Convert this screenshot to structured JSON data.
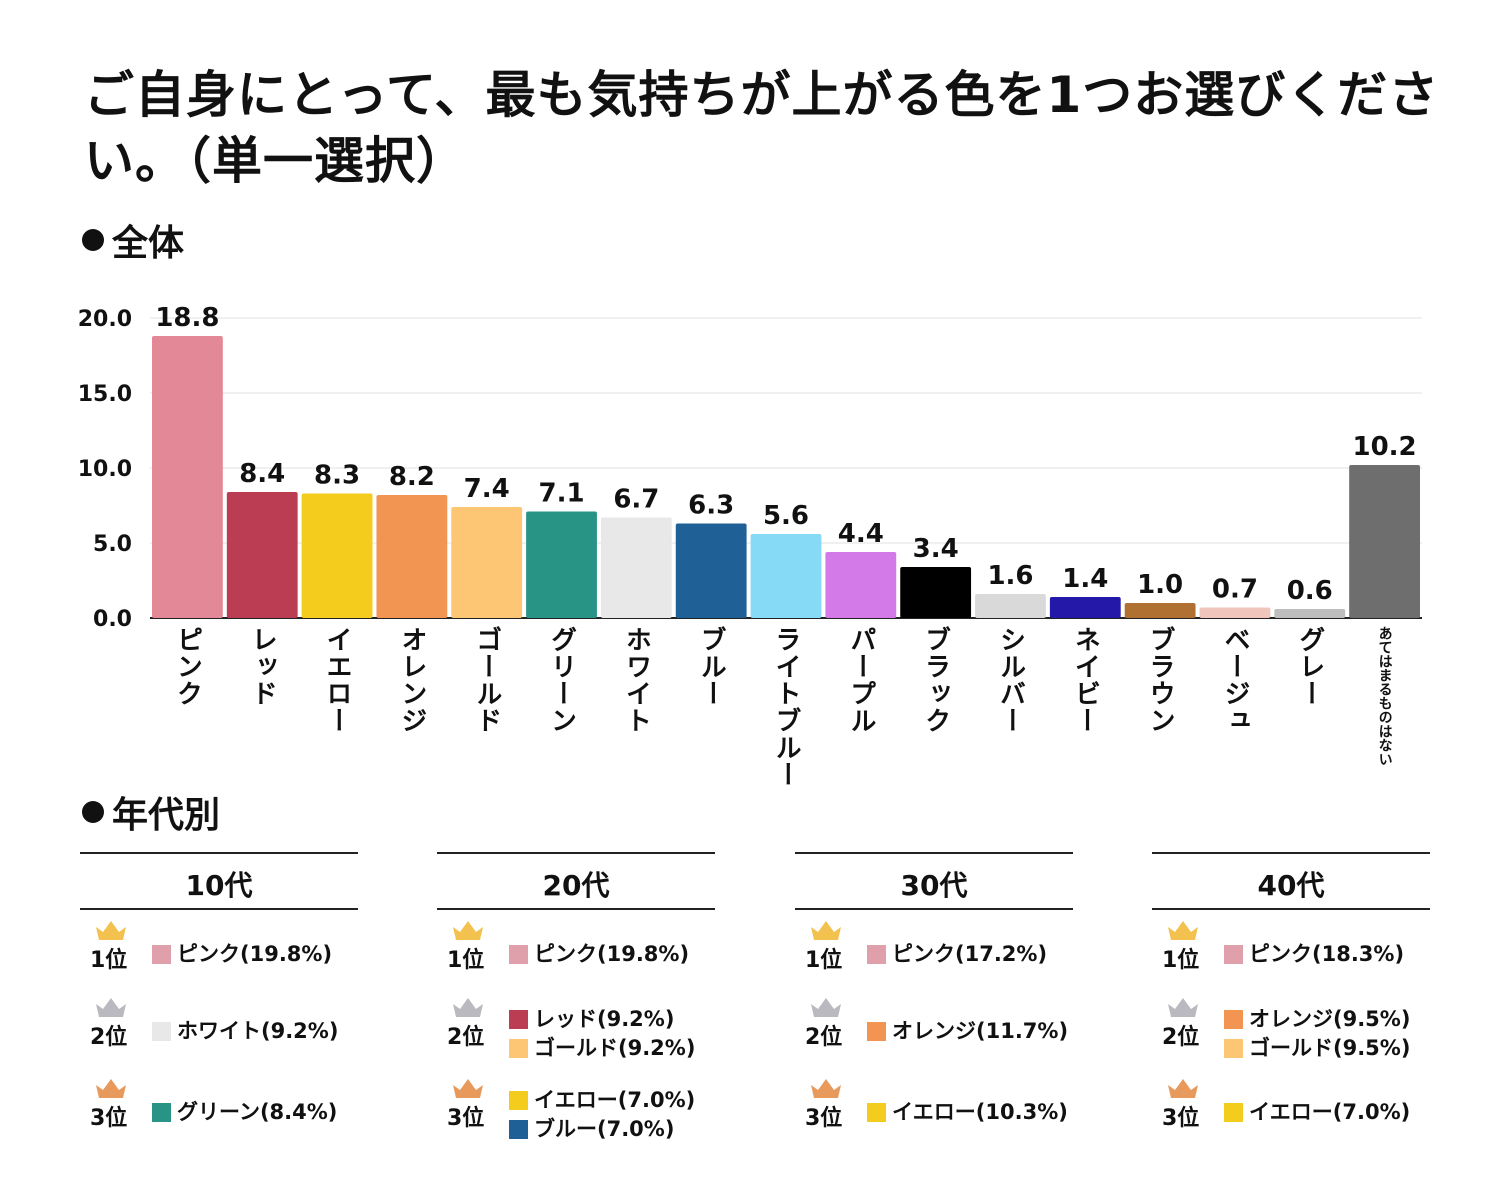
{
  "title": "ご自身にとって、最も気持ちが上がる色を1つお選びください。（単一選択）",
  "overall_label": "全体",
  "age_section_label": "年代別",
  "chart_data": {
    "type": "bar",
    "title": "全体",
    "categories": [
      "ピンク",
      "レッド",
      "イエロー",
      "オレンジ",
      "ゴールド",
      "グリーン",
      "ホワイト",
      "ブルー",
      "ライトブルー",
      "パープル",
      "ブラック",
      "シルバー",
      "ネイビー",
      "ブラウン",
      "ベージュ",
      "グレー",
      "あてはまるものはない"
    ],
    "values": [
      18.8,
      8.4,
      8.3,
      8.2,
      7.4,
      7.1,
      6.7,
      6.3,
      5.6,
      4.4,
      3.4,
      1.6,
      1.4,
      1.0,
      0.7,
      0.6,
      10.2
    ],
    "value_labels": [
      "18.8",
      "8.4",
      "8.3",
      "8.2",
      "7.4",
      "7.1",
      "6.7",
      "6.3",
      "5.6",
      "4.4",
      "3.4",
      "1.6",
      "1.4",
      "1.0",
      "0.7",
      "0.6",
      "10.2"
    ],
    "colors": [
      "#E38896",
      "#BB3D54",
      "#F3CC1E",
      "#F29552",
      "#FCC674",
      "#289485",
      "#E8E8E8",
      "#1F6196",
      "#86DAF5",
      "#D47AE8",
      "#000000",
      "#D9D9D9",
      "#2318A8",
      "#B07032",
      "#F0C5BB",
      "#BEBEBE",
      "#6E6E6E"
    ],
    "ylim": [
      0,
      20
    ],
    "yticks": [
      "0.0",
      "5.0",
      "10.0",
      "15.0",
      "20.0"
    ],
    "grid": true,
    "xlabel": "",
    "ylabel": ""
  },
  "age_groups": [
    {
      "label": "10代",
      "ranks": [
        {
          "label": "1位",
          "crown": "gold",
          "items": [
            {
              "text": "ピンク(19.8%)",
              "color": "#E0A0AB"
            }
          ]
        },
        {
          "label": "2位",
          "crown": "silver",
          "items": [
            {
              "text": "ホワイト(9.2%)",
              "color": "#E8E8E8"
            }
          ]
        },
        {
          "label": "3位",
          "crown": "bronze",
          "items": [
            {
              "text": "グリーン(8.4%)",
              "color": "#289485"
            }
          ]
        }
      ]
    },
    {
      "label": "20代",
      "ranks": [
        {
          "label": "1位",
          "crown": "gold",
          "items": [
            {
              "text": "ピンク(19.8%)",
              "color": "#E0A0AB"
            }
          ]
        },
        {
          "label": "2位",
          "crown": "silver",
          "items": [
            {
              "text": "レッド(9.2%)",
              "color": "#BB3D54"
            },
            {
              "text": "ゴールド(9.2%)",
              "color": "#FCC674"
            }
          ]
        },
        {
          "label": "3位",
          "crown": "bronze",
          "items": [
            {
              "text": "イエロー(7.0%)",
              "color": "#F3CC1E"
            },
            {
              "text": "ブルー(7.0%)",
              "color": "#1F6196"
            }
          ]
        }
      ]
    },
    {
      "label": "30代",
      "ranks": [
        {
          "label": "1位",
          "crown": "gold",
          "items": [
            {
              "text": "ピンク(17.2%)",
              "color": "#E0A0AB"
            }
          ]
        },
        {
          "label": "2位",
          "crown": "silver",
          "items": [
            {
              "text": "オレンジ(11.7%)",
              "color": "#F29552"
            }
          ]
        },
        {
          "label": "3位",
          "crown": "bronze",
          "items": [
            {
              "text": "イエロー(10.3%)",
              "color": "#F3CC1E"
            }
          ]
        }
      ]
    },
    {
      "label": "40代",
      "ranks": [
        {
          "label": "1位",
          "crown": "gold",
          "items": [
            {
              "text": "ピンク(18.3%)",
              "color": "#E0A0AB"
            }
          ]
        },
        {
          "label": "2位",
          "crown": "silver",
          "items": [
            {
              "text": "オレンジ(9.5%)",
              "color": "#F29552"
            },
            {
              "text": "ゴールド(9.5%)",
              "color": "#FCC674"
            }
          ]
        },
        {
          "label": "3位",
          "crown": "bronze",
          "items": [
            {
              "text": "イエロー(7.0%)",
              "color": "#F3CC1E"
            }
          ]
        }
      ]
    }
  ],
  "crown_colors": {
    "gold": "#F2C14E",
    "silver": "#B9B9BF",
    "bronze": "#E89A5C"
  }
}
